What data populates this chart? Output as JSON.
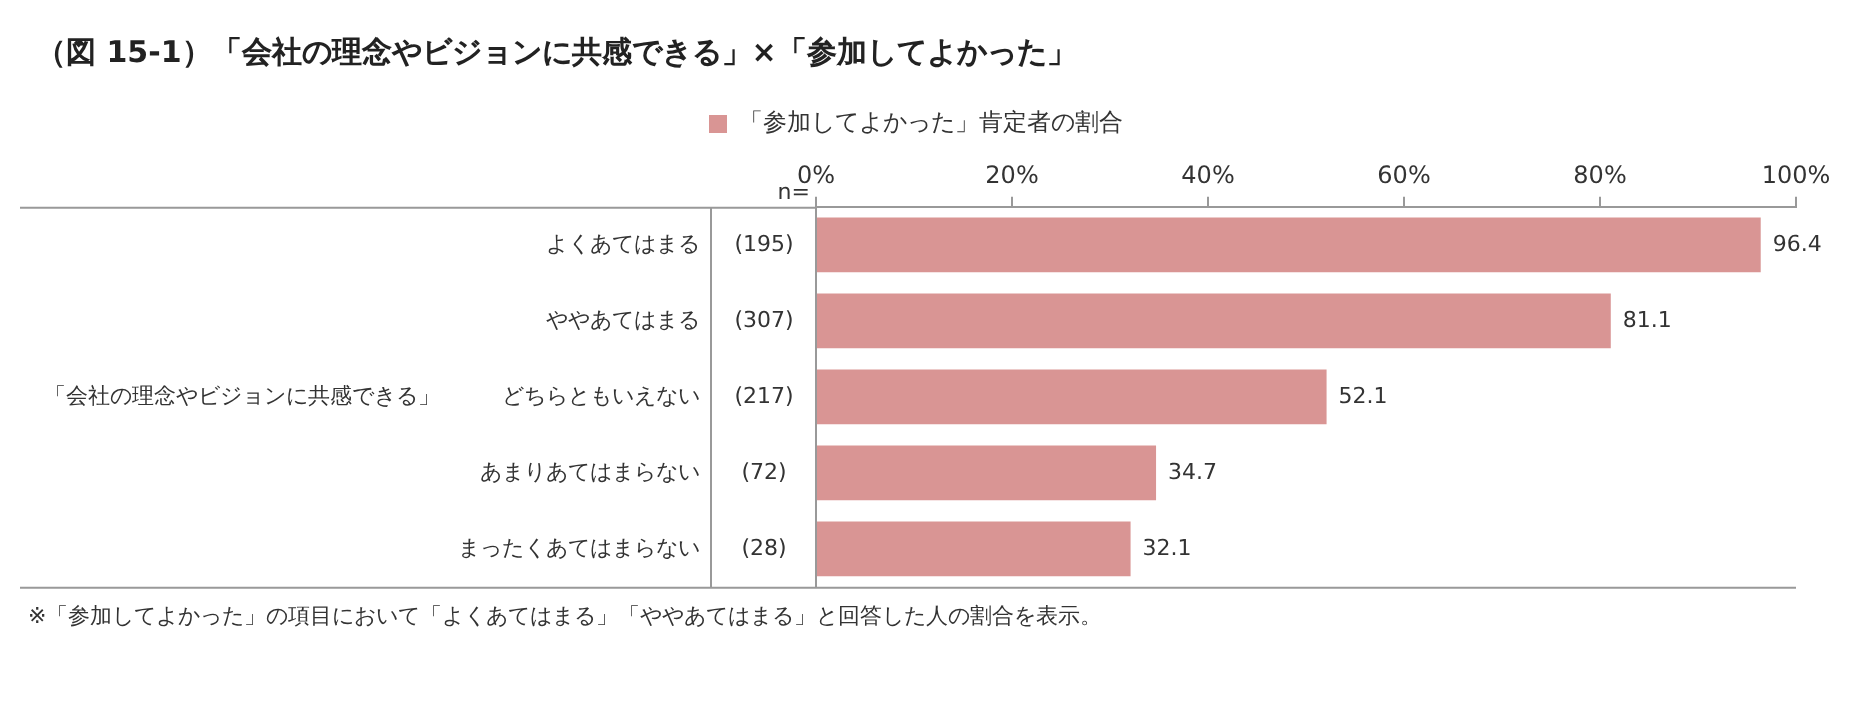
{
  "chart_data": {
    "type": "bar",
    "orientation": "horizontal",
    "title": "（図 15-1）「会社の理念やビジョンに共感できる」×「参加してよかった」",
    "ylabel": "「会社の理念やビジョンに共感できる」",
    "categories": [
      "よくあてはまる",
      "ややあてはまる",
      "どちらともいえない",
      "あまりあてはまらない",
      "まったくあてはまらない"
    ],
    "series": [
      {
        "name": "「参加してよかった」肯定者の割合",
        "color": "#d99594",
        "values": [
          96.4,
          81.1,
          52.1,
          34.7,
          32.1
        ]
      }
    ],
    "xlim": [
      0,
      100
    ],
    "xticks": [
      {
        "value": 0,
        "label": "0%"
      },
      {
        "value": 20,
        "label": "20%"
      },
      {
        "value": 40,
        "label": "40%"
      },
      {
        "value": 60,
        "label": "60%"
      },
      {
        "value": 80,
        "label": "80%"
      },
      {
        "value": 100,
        "label": "100%"
      }
    ],
    "data_labels": true,
    "grid": false,
    "legend": "top",
    "annotations": [
      "n=",
      "(195)",
      "(307)",
      "(217)",
      "(72)",
      "(28)",
      "※「参加してよかった」の項目において「よくあてはまる」「ややあてはまる」と回答した人の割合を表示。"
    ]
  }
}
